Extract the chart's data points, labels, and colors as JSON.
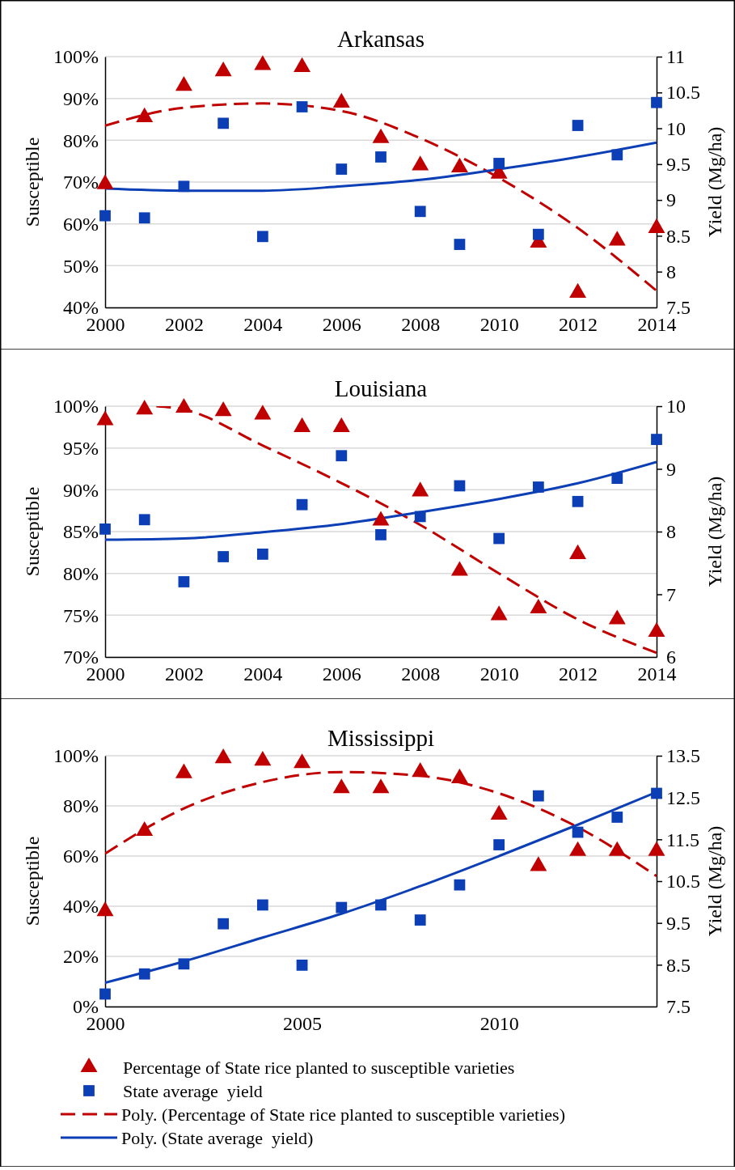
{
  "chart_data": [
    {
      "type": "scatter",
      "title": "Arkansas",
      "ylabel": "Susceptible",
      "y2label": "Yield (Mg/ha)",
      "grid": "y",
      "legend": false,
      "x": [
        2000,
        2001,
        2002,
        2003,
        2004,
        2005,
        2006,
        2007,
        2008,
        2009,
        2010,
        2011,
        2012,
        2013,
        2014
      ],
      "xlim": [
        2000,
        2014
      ],
      "xticks": [
        2000,
        2002,
        2004,
        2006,
        2008,
        2010,
        2012,
        2014
      ],
      "ylim": [
        40,
        100
      ],
      "yticks": [
        {
          "value": 40,
          "label": "40%"
        },
        {
          "value": 50,
          "label": "50%"
        },
        {
          "value": 60,
          "label": "60%"
        },
        {
          "value": 70,
          "label": "70%"
        },
        {
          "value": 80,
          "label": "80%"
        },
        {
          "value": 90,
          "label": "90%"
        },
        {
          "value": 100,
          "label": "100%"
        }
      ],
      "y2lim": [
        7.5,
        11
      ],
      "y2ticks": [
        7.5,
        8,
        8.5,
        9,
        9.5,
        10,
        10.5,
        11
      ],
      "series": [
        {
          "type": "scatter",
          "color": "#c00000",
          "marker": "triangle",
          "values": [
            69.5,
            85.5,
            93,
            96.5,
            98,
            97.5,
            89,
            80.5,
            74,
            73.5,
            72,
            55.5,
            43.5,
            56,
            59
          ]
        },
        {
          "type": "scatter",
          "color": "#0c3fb5",
          "marker": "square",
          "axis": "y2",
          "values": [
            8.78,
            8.75,
            9.19,
            10.07,
            8.49,
            10.3,
            9.43,
            9.6,
            8.84,
            8.38,
            9.51,
            8.52,
            10.04,
            9.63,
            10.36
          ]
        },
        {
          "type": "line",
          "color": "#c00000",
          "line_style": "dashed",
          "marker": "none",
          "x": [
            2000,
            2002,
            2004,
            2006,
            2008,
            2010,
            2012,
            2014
          ],
          "values": [
            83.5,
            87.8,
            88.8,
            87,
            80.5,
            71,
            59,
            44
          ]
        },
        {
          "type": "line",
          "color": "#0c3fb5",
          "line_style": "solid",
          "marker": "none",
          "axis": "y2",
          "x": [
            2000,
            2002,
            2004,
            2006,
            2008,
            2010,
            2012,
            2014
          ],
          "values": [
            9.16,
            9.13,
            9.13,
            9.19,
            9.28,
            9.43,
            9.6,
            9.8
          ]
        }
      ]
    },
    {
      "type": "scatter",
      "title": "Louisiana",
      "ylabel": "Susceptible",
      "y2label": "Yield (Mg/ha)",
      "grid": "y",
      "legend": false,
      "x": [
        2000,
        2001,
        2002,
        2003,
        2004,
        2005,
        2006,
        2007,
        2008,
        2009,
        2010,
        2011,
        2012,
        2013,
        2014
      ],
      "xlim": [
        2000,
        2014
      ],
      "xticks": [
        2000,
        2002,
        2004,
        2006,
        2008,
        2010,
        2012,
        2014
      ],
      "ylim": [
        70,
        100
      ],
      "yticks": [
        {
          "value": 70,
          "label": "70%"
        },
        {
          "value": 75,
          "label": "75%"
        },
        {
          "value": 80,
          "label": "80%"
        },
        {
          "value": 85,
          "label": "85%"
        },
        {
          "value": 90,
          "label": "90%"
        },
        {
          "value": 95,
          "label": "95%"
        },
        {
          "value": 100,
          "label": "100%"
        }
      ],
      "y2lim": [
        6,
        10
      ],
      "y2ticks": [
        6,
        7,
        8,
        9,
        10
      ],
      "series": [
        {
          "type": "scatter",
          "color": "#c00000",
          "marker": "triangle",
          "values": [
            98.3,
            99.6,
            99.8,
            99.4,
            99,
            97.5,
            97.5,
            86.3,
            89.8,
            80.3,
            75,
            75.8,
            82.3,
            74.5,
            73
          ]
        },
        {
          "type": "scatter",
          "color": "#0c3fb5",
          "marker": "square",
          "axis": "y2",
          "values": [
            8.04,
            8.19,
            7.2,
            7.6,
            7.64,
            8.43,
            9.21,
            7.95,
            8.24,
            8.73,
            7.89,
            8.71,
            8.48,
            8.85,
            9.47
          ]
        },
        {
          "type": "line",
          "color": "#c00000",
          "line_style": "dashed",
          "marker": "none",
          "x": [
            2001.3,
            2002,
            2004,
            2006,
            2008,
            2010,
            2012,
            2014
          ],
          "values": [
            100,
            99.6,
            95.3,
            90.8,
            85.8,
            80,
            74.5,
            70.5
          ]
        },
        {
          "type": "line",
          "color": "#0c3fb5",
          "line_style": "solid",
          "marker": "none",
          "axis": "y2",
          "x": [
            2000,
            2002,
            2004,
            2006,
            2008,
            2010,
            2012,
            2014
          ],
          "values": [
            7.87,
            7.89,
            7.99,
            8.12,
            8.31,
            8.52,
            8.77,
            9.11
          ]
        }
      ]
    },
    {
      "type": "scatter",
      "title": "Mississippi",
      "ylabel": "Susceptible",
      "y2label": "Yield (Mg/ha)",
      "grid": "y",
      "legend": "bottom",
      "x": [
        2000,
        2001,
        2002,
        2003,
        2004,
        2005,
        2006,
        2007,
        2008,
        2009,
        2010,
        2011,
        2012,
        2013,
        2014
      ],
      "xlim": [
        2000,
        2014
      ],
      "xticks": [
        2000,
        2005,
        2010
      ],
      "ylim": [
        0,
        100
      ],
      "yticks": [
        {
          "value": 0,
          "label": "0%"
        },
        {
          "value": 20,
          "label": "20%"
        },
        {
          "value": 40,
          "label": "40%"
        },
        {
          "value": 60,
          "label": "60%"
        },
        {
          "value": 80,
          "label": "80%"
        },
        {
          "value": 100,
          "label": "100%"
        }
      ],
      "y2lim": [
        7.5,
        13.5
      ],
      "y2ticks": [
        7.5,
        8.5,
        9.5,
        10.5,
        11.5,
        12.5,
        13.5
      ],
      "series": [
        {
          "type": "scatter",
          "name": "Percentage of State rice planted to susceptible varieties",
          "color": "#c00000",
          "marker": "triangle",
          "values": [
            38,
            70,
            93,
            99,
            98,
            97,
            87,
            87,
            93.5,
            91,
            76.5,
            56,
            62,
            62,
            62
          ]
        },
        {
          "type": "scatter",
          "name": "State average  yield",
          "color": "#0c3fb5",
          "marker": "square",
          "axis": "y2",
          "values": [
            7.8,
            8.28,
            8.52,
            9.48,
            9.93,
            8.49,
            9.87,
            9.93,
            9.57,
            10.41,
            11.37,
            12.54,
            11.67,
            12.03,
            12.6
          ]
        },
        {
          "type": "line",
          "name": "Poly. (Percentage of State rice planted to susceptible varieties)",
          "color": "#c00000",
          "line_style": "dashed",
          "marker": "none",
          "x": [
            2000,
            2002,
            2004,
            2006,
            2008,
            2010,
            2012,
            2014
          ],
          "values": [
            61,
            79,
            89.5,
            93.5,
            92,
            85,
            71.5,
            52
          ]
        },
        {
          "type": "line",
          "name": "Poly. (State average  yield)",
          "color": "#0c3fb5",
          "line_style": "solid",
          "marker": "none",
          "axis": "y2",
          "x": [
            2000,
            2002,
            2004,
            2006,
            2008,
            2010,
            2012,
            2014
          ],
          "values": [
            8.07,
            8.58,
            9.15,
            9.72,
            10.38,
            11.1,
            11.85,
            12.63
          ]
        }
      ]
    }
  ]
}
